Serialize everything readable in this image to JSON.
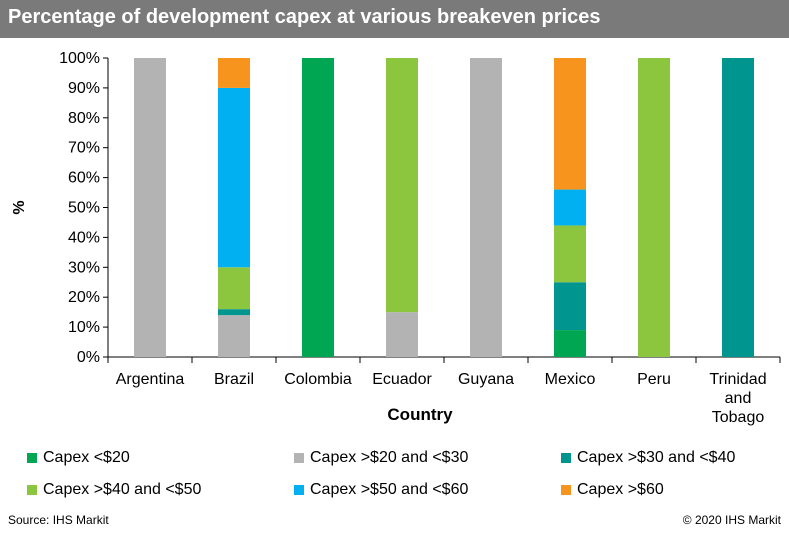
{
  "chart_data": {
    "type": "bar",
    "stacked": true,
    "title": "Percentage of development capex at various breakeven prices",
    "xlabel": "Country",
    "ylabel": "%",
    "ylim": [
      0,
      100
    ],
    "yticks": [
      "0%",
      "10%",
      "20%",
      "30%",
      "40%",
      "50%",
      "60%",
      "70%",
      "80%",
      "90%",
      "100%"
    ],
    "categories": [
      "Argentina",
      "Brazil",
      "Colombia",
      "Ecuador",
      "Guyana",
      "Mexico",
      "Peru",
      "Trinidad and Tobago"
    ],
    "category_lines": [
      [
        "Argentina"
      ],
      [
        "Brazil"
      ],
      [
        "Colombia"
      ],
      [
        "Ecuador"
      ],
      [
        "Guyana"
      ],
      [
        "Mexico"
      ],
      [
        "Peru"
      ],
      [
        "Trinidad",
        "and",
        "Tobago"
      ]
    ],
    "series": [
      {
        "name": "Capex <$20",
        "color": "#00a651",
        "values": [
          0,
          0,
          100,
          0,
          0,
          9,
          0,
          0
        ]
      },
      {
        "name": "Capex >$20 and <$30",
        "color": "#b3b3b3",
        "values": [
          100,
          14,
          0,
          15,
          100,
          0,
          0,
          0
        ]
      },
      {
        "name": "Capex >$30 and <$40",
        "color": "#00958f",
        "values": [
          0,
          2,
          0,
          0,
          0,
          16,
          0,
          100
        ]
      },
      {
        "name": "Capex >$40 and <$50",
        "color": "#8cc63f",
        "values": [
          0,
          14,
          0,
          85,
          0,
          19,
          100,
          0
        ]
      },
      {
        "name": "Capex >$50 and <$60",
        "color": "#00b0f0",
        "values": [
          0,
          60,
          0,
          0,
          0,
          12,
          0,
          0
        ]
      },
      {
        "name": "Capex >$60",
        "color": "#f7941d",
        "values": [
          0,
          10,
          0,
          0,
          0,
          44,
          0,
          0
        ]
      }
    ],
    "grid": false,
    "legend_position": "bottom"
  },
  "footer": {
    "source": "Source: IHS Markit",
    "copyright": "© 2020 IHS Markit"
  }
}
